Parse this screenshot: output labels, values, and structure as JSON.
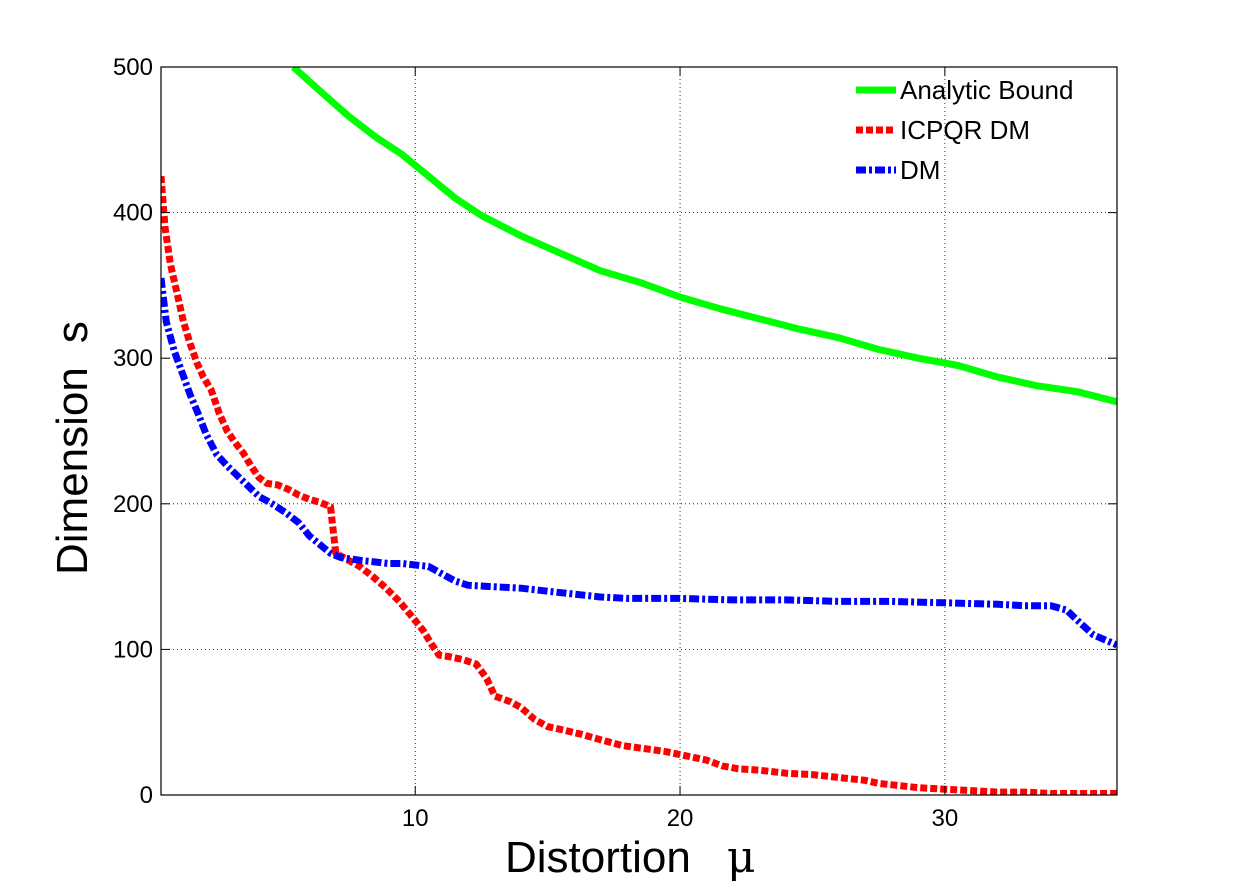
{
  "chart_data": {
    "type": "line",
    "title": "",
    "xlabel": "Distortion",
    "xlabel_symbol": "μ",
    "ylabel": "Dimension",
    "ylabel_symbol": "s",
    "xlim": [
      0.4,
      36.5
    ],
    "ylim": [
      0,
      500
    ],
    "xticks": [
      10,
      20,
      30
    ],
    "yticks": [
      0,
      100,
      200,
      300,
      400,
      500
    ],
    "grid": true,
    "legend_position": "top-right",
    "series": [
      {
        "name": "Analytic Bound",
        "color": "#00ff00",
        "style": "solid",
        "x": [
          5.4,
          6.5,
          7.5,
          8.5,
          9.5,
          10.5,
          11.5,
          12.5,
          14,
          15.5,
          17,
          18.5,
          20,
          21.5,
          23,
          24.5,
          26,
          27.5,
          29,
          30.5,
          32,
          33.5,
          35,
          36.5
        ],
        "y": [
          500,
          482,
          466,
          452,
          440,
          425,
          410,
          398,
          384,
          372,
          360,
          352,
          342,
          334,
          327,
          320,
          314,
          306,
          300,
          295,
          287,
          281,
          277,
          270
        ]
      },
      {
        "name": "ICPQR DM",
        "color": "#ff0000",
        "style": "dashed",
        "x": [
          0.4,
          0.55,
          0.75,
          1.0,
          1.25,
          1.5,
          1.75,
          2.0,
          2.3,
          2.6,
          2.9,
          3.2,
          3.5,
          3.8,
          4.1,
          4.4,
          4.8,
          5.2,
          5.6,
          6.0,
          6.4,
          6.8,
          6.85,
          7.0,
          7.4,
          7.9,
          8.4,
          8.9,
          9.4,
          9.9,
          10.3,
          10.6,
          10.9,
          11.3,
          11.8,
          12.3,
          12.7,
          13.0,
          13.3,
          13.6,
          14.0,
          14.5,
          15.0,
          15.5,
          16.2,
          17.0,
          17.8,
          18.6,
          19.4,
          20.2,
          21.0,
          21.6,
          22.2,
          23.0,
          24.0,
          25.0,
          26.0,
          27.0,
          27.5,
          28.0,
          29.0,
          30.0,
          31.0,
          32.0,
          33.0,
          34.0,
          35.0,
          36.0,
          36.5
        ],
        "y": [
          425,
          390,
          365,
          345,
          325,
          310,
          297,
          287,
          278,
          262,
          250,
          242,
          235,
          226,
          218,
          214,
          213,
          210,
          206,
          203,
          201,
          198,
          190,
          166,
          162,
          157,
          150,
          142,
          133,
          122,
          113,
          104,
          96,
          95,
          93,
          90,
          80,
          68,
          66,
          64,
          60,
          52,
          47,
          45,
          42,
          38,
          34,
          32,
          30,
          27,
          24,
          20,
          18,
          17,
          15,
          14,
          12,
          10,
          8,
          7,
          5,
          4,
          3,
          2,
          2,
          1,
          1,
          1,
          1
        ]
      },
      {
        "name": "DM",
        "color": "#0000ff",
        "style": "dash-dot",
        "x": [
          0.4,
          0.6,
          0.9,
          1.2,
          1.5,
          1.8,
          2.1,
          2.5,
          2.9,
          3.3,
          3.7,
          4.1,
          4.6,
          5.1,
          5.6,
          6.0,
          6.4,
          6.8,
          7.2,
          7.6,
          8.0,
          8.5,
          9.0,
          9.5,
          10.0,
          10.5,
          11.0,
          11.5,
          12.0,
          13.0,
          14.0,
          15.0,
          16.0,
          17.0,
          18.0,
          20.0,
          22.0,
          24.0,
          26.0,
          28.0,
          30.0,
          32.0,
          33.0,
          34.0,
          34.6,
          35.0,
          35.6,
          36.5
        ],
        "y": [
          355,
          325,
          305,
          290,
          275,
          262,
          248,
          234,
          226,
          219,
          212,
          205,
          200,
          194,
          187,
          178,
          172,
          166,
          163,
          162,
          161,
          160,
          159,
          159,
          158,
          157,
          152,
          147,
          144,
          143,
          142,
          140,
          138,
          136,
          135,
          135,
          134,
          134,
          133,
          133,
          132,
          131,
          130,
          130,
          127,
          120,
          110,
          103
        ]
      }
    ]
  }
}
